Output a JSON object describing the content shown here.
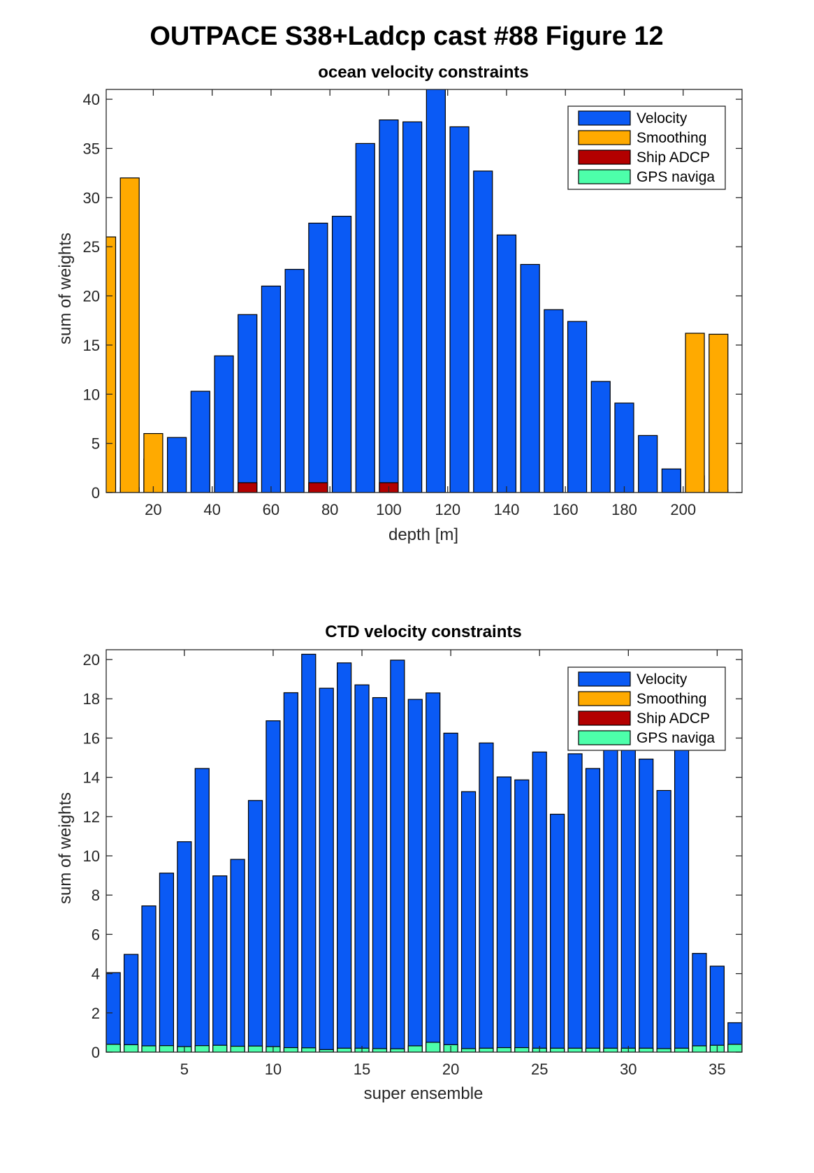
{
  "figure_title": "OUTPACE S38+Ladcp cast #88  Figure 12",
  "colors": {
    "Velocity": "#0a5af5",
    "Smoothing": "#ffaa00",
    "Ship ADCP": "#b30000",
    "GPS naviga": "#4dffaa"
  },
  "chart_data": [
    {
      "type": "bar",
      "stacked": true,
      "title": "ocean velocity constraints",
      "xlabel": "depth [m]",
      "ylabel": "sum of weights",
      "xlim": [
        4,
        220
      ],
      "ylim": [
        0,
        41
      ],
      "xticks": [
        20,
        40,
        60,
        80,
        100,
        120,
        140,
        160,
        180,
        200
      ],
      "yticks": [
        0,
        5,
        10,
        15,
        20,
        25,
        30,
        35,
        40
      ],
      "legend_position": "top-right",
      "legend": [
        "Velocity",
        "Smoothing",
        "Ship ADCP",
        "GPS naviga"
      ],
      "x": [
        4,
        12,
        20,
        28,
        36,
        44,
        52,
        60,
        68,
        76,
        84,
        92,
        100,
        108,
        116,
        124,
        132,
        140,
        148,
        156,
        164,
        172,
        180,
        188,
        196,
        204,
        212,
        220
      ],
      "series": [
        {
          "name": "Velocity",
          "values": [
            0,
            0.5,
            3.4,
            5.6,
            10.3,
            13.9,
            18.1,
            21.0,
            22.7,
            27.4,
            28.1,
            35.5,
            37.9,
            37.7,
            41.5,
            37.2,
            32.7,
            26.2,
            23.2,
            18.6,
            17.4,
            11.3,
            9.1,
            5.8,
            2.4,
            1.7,
            0.3,
            0
          ]
        },
        {
          "name": "Smoothing",
          "values": [
            26.0,
            32.0,
            6.0,
            0,
            0,
            0,
            0,
            0,
            0,
            0,
            0,
            0,
            0,
            0,
            0,
            0,
            0,
            0,
            0,
            0,
            0,
            0,
            0,
            0,
            0,
            16.2,
            16.1,
            0
          ]
        },
        {
          "name": "Ship ADCP",
          "values": [
            0,
            0,
            0,
            0,
            0,
            0,
            1.0,
            0,
            0,
            1.0,
            0,
            0,
            1.0,
            0,
            0,
            0,
            0,
            0,
            0,
            0,
            0,
            0,
            0,
            0,
            0,
            0,
            0,
            0
          ]
        },
        {
          "name": "GPS naviga",
          "values": [
            0,
            0,
            0,
            0,
            0,
            0,
            0,
            0,
            0,
            0,
            0,
            0,
            0,
            0,
            0,
            0,
            0,
            0,
            0,
            0,
            0,
            0,
            0,
            0,
            0,
            0,
            0,
            0
          ]
        }
      ]
    },
    {
      "type": "bar",
      "stacked": true,
      "title": "CTD velocity constraints",
      "xlabel": "super ensemble",
      "ylabel": "sum of weights",
      "xlim": [
        0.6,
        36.4
      ],
      "ylim": [
        0,
        20.5
      ],
      "xticks": [
        5,
        10,
        15,
        20,
        25,
        30,
        35
      ],
      "yticks": [
        0,
        2,
        4,
        6,
        8,
        10,
        12,
        14,
        16,
        18,
        20
      ],
      "legend_position": "top-right",
      "legend": [
        "Velocity",
        "Smoothing",
        "Ship ADCP",
        "GPS naviga"
      ],
      "x": [
        1,
        2,
        3,
        4,
        5,
        6,
        7,
        8,
        9,
        10,
        11,
        12,
        13,
        14,
        15,
        16,
        17,
        18,
        19,
        20,
        21,
        22,
        23,
        24,
        25,
        26,
        27,
        28,
        29,
        30,
        31,
        32,
        33,
        34,
        35,
        36
      ],
      "series": [
        {
          "name": "Velocity",
          "values": [
            4.05,
            4.98,
            7.45,
            9.12,
            10.72,
            14.45,
            8.98,
            9.82,
            12.82,
            16.88,
            18.31,
            20.27,
            18.54,
            19.83,
            18.71,
            18.06,
            19.97,
            17.97,
            18.3,
            16.25,
            13.27,
            15.75,
            14.02,
            13.87,
            15.29,
            12.12,
            15.2,
            14.45,
            15.5,
            15.5,
            14.93,
            13.33,
            15.6,
            5.03,
            4.38,
            1.5
          ]
        },
        {
          "name": "Smoothing",
          "values": [
            0,
            0,
            0,
            0,
            0,
            0,
            0,
            0,
            0,
            0,
            0,
            0,
            0,
            0,
            0,
            0,
            0,
            0,
            0,
            0,
            0,
            0,
            0,
            0,
            0,
            0,
            0,
            0,
            0,
            0,
            0,
            0,
            0,
            0,
            0,
            0
          ]
        },
        {
          "name": "Ship ADCP",
          "values": [
            0,
            0,
            0,
            0,
            0,
            0,
            0,
            0,
            0,
            0,
            0,
            0,
            0,
            0,
            0,
            0,
            0,
            0,
            0,
            0,
            0,
            0,
            0,
            0,
            0,
            0,
            0,
            0,
            0,
            0,
            0,
            0,
            0,
            0,
            0,
            0
          ]
        },
        {
          "name": "GPS naviga",
          "values": [
            0.4,
            0.38,
            0.32,
            0.33,
            0.28,
            0.33,
            0.35,
            0.3,
            0.31,
            0.28,
            0.23,
            0.22,
            0.13,
            0.2,
            0.2,
            0.18,
            0.17,
            0.32,
            0.5,
            0.38,
            0.18,
            0.2,
            0.23,
            0.23,
            0.2,
            0.2,
            0.2,
            0.2,
            0.2,
            0.2,
            0.2,
            0.18,
            0.2,
            0.32,
            0.35,
            0.4
          ]
        }
      ]
    }
  ]
}
